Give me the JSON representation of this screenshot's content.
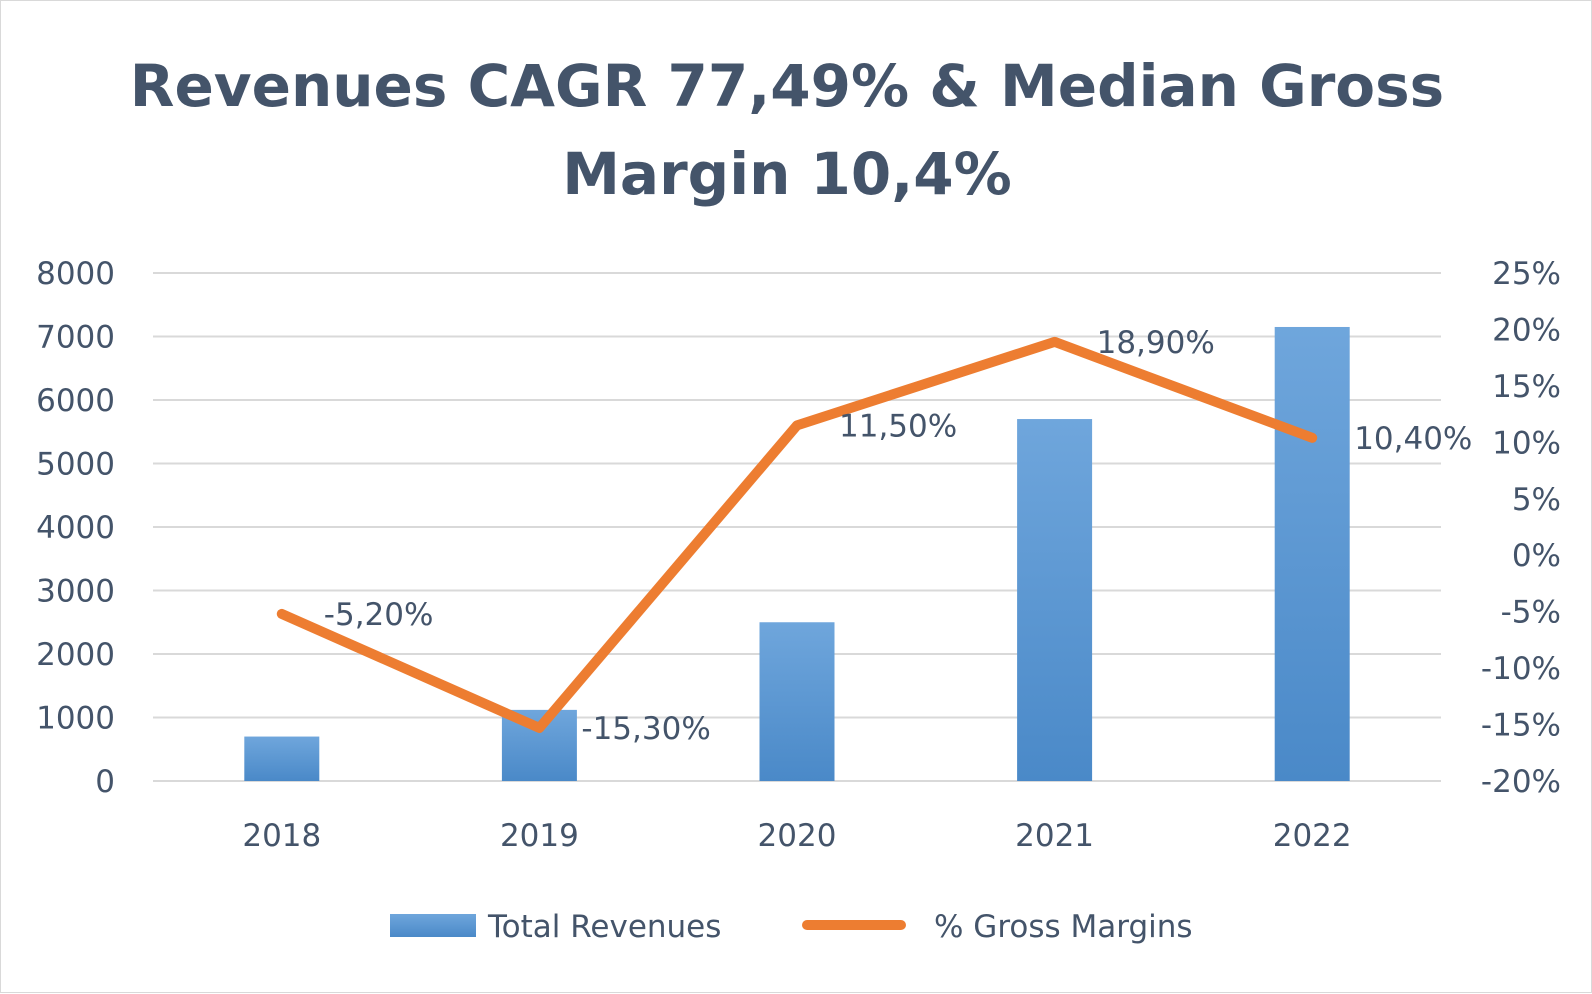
{
  "chart_data": {
    "type": "bar",
    "title_lines": [
      "Revenues CAGR 77,49% & Median Gross",
      "Margin 10,4%"
    ],
    "categories": [
      "2018",
      "2019",
      "2020",
      "2021",
      "2022"
    ],
    "series": [
      {
        "name": "Total Revenues",
        "type": "bar",
        "axis": "left",
        "values": [
          700,
          1120,
          2500,
          5700,
          7150
        ],
        "color": "#5b9bd5"
      },
      {
        "name": "% Gross Margins",
        "type": "line",
        "axis": "right",
        "values": [
          -5.2,
          -15.3,
          11.5,
          18.9,
          10.4
        ],
        "data_labels": [
          "-5,20%",
          "-15,30%",
          "11,50%",
          "18,90%",
          "10,40%"
        ],
        "color": "#ed7d31"
      }
    ],
    "y_left": {
      "ylim": [
        0,
        8000
      ],
      "ticks": [
        "0",
        "1000",
        "2000",
        "3000",
        "4000",
        "5000",
        "6000",
        "7000",
        "8000"
      ]
    },
    "y_right": {
      "ylim": [
        -20,
        25
      ],
      "ticks": [
        "-20%",
        "-15%",
        "-10%",
        "-5%",
        "0%",
        "5%",
        "10%",
        "15%",
        "20%",
        "25%"
      ]
    },
    "grid": true,
    "legend_position": "bottom",
    "text_color": "#44546a"
  }
}
